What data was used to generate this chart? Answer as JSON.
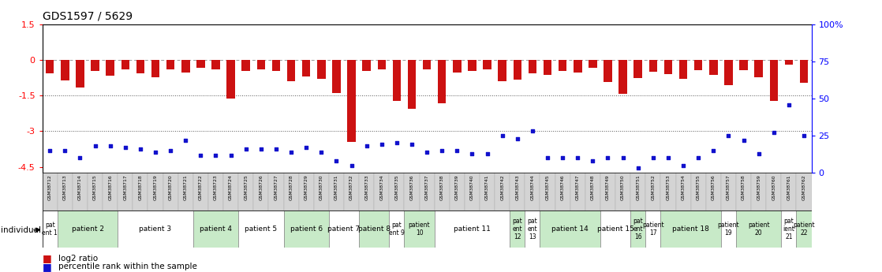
{
  "title": "GDS1597 / 5629",
  "gsm_ids": [
    "GSM38712",
    "GSM38713",
    "GSM38714",
    "GSM38715",
    "GSM38716",
    "GSM38717",
    "GSM38718",
    "GSM38719",
    "GSM38720",
    "GSM38721",
    "GSM38722",
    "GSM38723",
    "GSM38724",
    "GSM38725",
    "GSM38726",
    "GSM38727",
    "GSM38728",
    "GSM38729",
    "GSM38730",
    "GSM38731",
    "GSM38732",
    "GSM38733",
    "GSM38734",
    "GSM38735",
    "GSM38736",
    "GSM38737",
    "GSM38738",
    "GSM38739",
    "GSM38740",
    "GSM38741",
    "GSM38742",
    "GSM38743",
    "GSM38744",
    "GSM38745",
    "GSM38746",
    "GSM38747",
    "GSM38748",
    "GSM38749",
    "GSM38750",
    "GSM38751",
    "GSM38752",
    "GSM38753",
    "GSM38754",
    "GSM38755",
    "GSM38756",
    "GSM38757",
    "GSM38758",
    "GSM38759",
    "GSM38760",
    "GSM38761",
    "GSM38762"
  ],
  "log2_ratio": [
    -0.55,
    -0.85,
    -1.15,
    -0.45,
    -0.65,
    -0.38,
    -0.55,
    -0.72,
    -0.38,
    -0.52,
    -0.32,
    -0.38,
    -1.62,
    -0.45,
    -0.38,
    -0.45,
    -0.88,
    -0.68,
    -0.78,
    -1.38,
    -3.45,
    -0.45,
    -0.38,
    -1.72,
    -2.05,
    -0.38,
    -1.82,
    -0.52,
    -0.45,
    -0.38,
    -0.88,
    -0.82,
    -0.55,
    -0.62,
    -0.45,
    -0.52,
    -0.32,
    -0.92,
    -1.42,
    -0.75,
    -0.48,
    -0.58,
    -0.78,
    -0.42,
    -0.62,
    -1.05,
    -0.42,
    -0.72,
    -1.72,
    -0.18,
    -0.95
  ],
  "pct_rank": [
    15,
    15,
    10,
    18,
    18,
    17,
    16,
    14,
    15,
    22,
    12,
    12,
    12,
    16,
    16,
    16,
    14,
    17,
    14,
    8,
    5,
    18,
    19,
    20,
    19,
    14,
    15,
    15,
    13,
    13,
    25,
    23,
    28,
    10,
    10,
    10,
    8,
    10,
    10,
    3,
    10,
    10,
    5,
    10,
    15,
    25,
    22,
    13,
    27,
    46,
    25
  ],
  "ylim_left": [
    -4.75,
    1.5
  ],
  "ylim_right": [
    0,
    100
  ],
  "bar_color": "#cc1111",
  "dot_color": "#1111cc",
  "patients": [
    {
      "label": "pat\nent 1",
      "start": 0,
      "end": 1,
      "color": "#ffffff"
    },
    {
      "label": "patient 2",
      "start": 1,
      "end": 5,
      "color": "#c8eac8"
    },
    {
      "label": "patient 3",
      "start": 5,
      "end": 10,
      "color": "#ffffff"
    },
    {
      "label": "patient 4",
      "start": 10,
      "end": 13,
      "color": "#c8eac8"
    },
    {
      "label": "patient 5",
      "start": 13,
      "end": 16,
      "color": "#ffffff"
    },
    {
      "label": "patient 6",
      "start": 16,
      "end": 19,
      "color": "#c8eac8"
    },
    {
      "label": "patient 7",
      "start": 19,
      "end": 21,
      "color": "#ffffff"
    },
    {
      "label": "patient 8",
      "start": 21,
      "end": 23,
      "color": "#c8eac8"
    },
    {
      "label": "pat\nent 9",
      "start": 23,
      "end": 24,
      "color": "#ffffff"
    },
    {
      "label": "patient\n10",
      "start": 24,
      "end": 26,
      "color": "#c8eac8"
    },
    {
      "label": "patient 11",
      "start": 26,
      "end": 31,
      "color": "#ffffff"
    },
    {
      "label": "pat\nent\n12",
      "start": 31,
      "end": 32,
      "color": "#c8eac8"
    },
    {
      "label": "pat\nent\n13",
      "start": 32,
      "end": 33,
      "color": "#ffffff"
    },
    {
      "label": "patient 14",
      "start": 33,
      "end": 37,
      "color": "#c8eac8"
    },
    {
      "label": "patient 15",
      "start": 37,
      "end": 39,
      "color": "#ffffff"
    },
    {
      "label": "pat\nent\n16",
      "start": 39,
      "end": 40,
      "color": "#c8eac8"
    },
    {
      "label": "patient\n17",
      "start": 40,
      "end": 41,
      "color": "#ffffff"
    },
    {
      "label": "patient 18",
      "start": 41,
      "end": 45,
      "color": "#c8eac8"
    },
    {
      "label": "patient\n19",
      "start": 45,
      "end": 46,
      "color": "#ffffff"
    },
    {
      "label": "patient\n20",
      "start": 46,
      "end": 49,
      "color": "#c8eac8"
    },
    {
      "label": "pat\nient\n21",
      "start": 49,
      "end": 50,
      "color": "#ffffff"
    },
    {
      "label": "patient\n22",
      "start": 50,
      "end": 51,
      "color": "#c8eac8"
    }
  ]
}
